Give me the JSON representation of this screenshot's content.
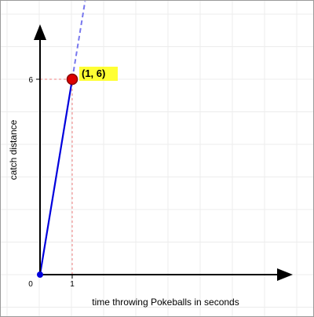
{
  "chart_data": {
    "type": "line",
    "xlabel": "time throwing Pokeballs in seconds",
    "ylabel": "catch distance",
    "xlim": [
      0,
      7.8
    ],
    "ylim": [
      0,
      8
    ],
    "x_ticks": [
      0,
      1
    ],
    "y_ticks": [
      6
    ],
    "grid": true,
    "series": [
      {
        "x": [
          0,
          1
        ],
        "y": [
          0,
          6
        ],
        "color": "#0000dd",
        "style": "solid"
      },
      {
        "x": [
          1,
          1.4
        ],
        "y": [
          6,
          8.4
        ],
        "color": "#7777ee",
        "style": "dashed"
      }
    ],
    "highlight_point": {
      "x": 1,
      "y": 6,
      "label": "(1, 6)",
      "color": "#dd0000",
      "label_bg": "#ffff33"
    },
    "origin_point": {
      "x": 0,
      "y": 0,
      "color": "#0000dd"
    },
    "guide_color": "#f08080"
  }
}
